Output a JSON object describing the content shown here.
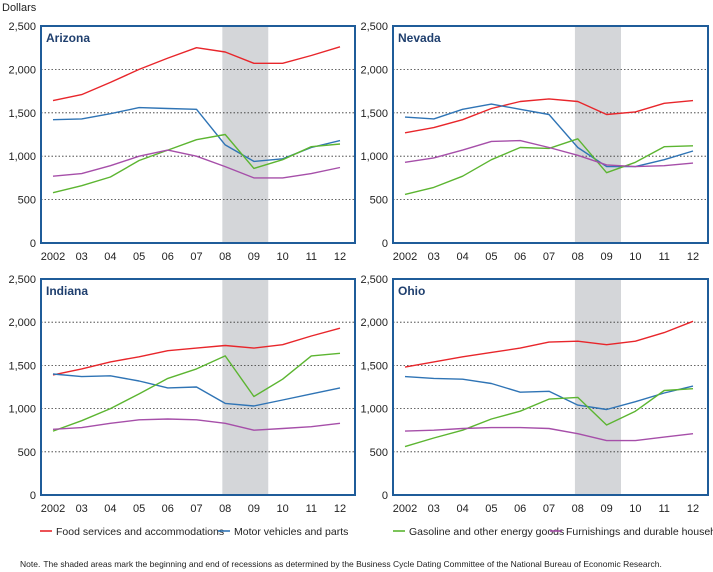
{
  "y_unit_label": "Dollars",
  "note_prefix": "Note.",
  "note_text": "The shaded areas mark the beginning and end of recessions as determined by the Business Cycle Dating Committee of the National Bureau of Economic Research.",
  "colors": {
    "food": "#e8262b",
    "motor": "#2f74b5",
    "gas": "#5cb531",
    "furn": "#a64fa9",
    "frame": "#1f5c99",
    "recession": "#d4d6d9"
  },
  "chart_data": [
    {
      "type": "line",
      "title": "Arizona",
      "x": [
        "2002",
        "03",
        "04",
        "05",
        "06",
        "07",
        "08",
        "09",
        "10",
        "11",
        "12"
      ],
      "ylim": [
        0,
        2500
      ],
      "yticks": [
        "0",
        "500",
        "1,000",
        "1,500",
        "2,000",
        "2,500"
      ],
      "recession": [
        2007.9,
        2009.5
      ],
      "series": [
        {
          "name": "Food services and accommodations",
          "color": "#e8262b",
          "values": [
            1640,
            1710,
            1850,
            2000,
            2130,
            2250,
            2200,
            2070,
            2070,
            2160,
            2260
          ]
        },
        {
          "name": "Motor vehicles and parts",
          "color": "#2f74b5",
          "values": [
            1420,
            1430,
            1490,
            1560,
            1550,
            1540,
            1130,
            940,
            970,
            1100,
            1180
          ]
        },
        {
          "name": "Gasoline and other energy goods",
          "color": "#5cb531",
          "values": [
            580,
            660,
            760,
            950,
            1070,
            1190,
            1250,
            860,
            960,
            1110,
            1140
          ]
        },
        {
          "name": "Furnishings and durable household equipment",
          "color": "#a64fa9",
          "values": [
            770,
            800,
            890,
            1000,
            1070,
            1000,
            880,
            750,
            750,
            800,
            870
          ]
        }
      ]
    },
    {
      "type": "line",
      "title": "Nevada",
      "x": [
        "2002",
        "03",
        "04",
        "05",
        "06",
        "07",
        "08",
        "09",
        "10",
        "11",
        "12"
      ],
      "ylim": [
        0,
        2500
      ],
      "yticks": [
        "0",
        "500",
        "1,000",
        "1,500",
        "2,000",
        "2,500"
      ],
      "recession": [
        2007.9,
        2009.5
      ],
      "series": [
        {
          "name": "Food services and accommodations",
          "color": "#e8262b",
          "values": [
            1270,
            1330,
            1420,
            1550,
            1630,
            1660,
            1630,
            1480,
            1510,
            1610,
            1640
          ]
        },
        {
          "name": "Motor vehicles and parts",
          "color": "#2f74b5",
          "values": [
            1450,
            1430,
            1540,
            1600,
            1540,
            1480,
            1100,
            880,
            880,
            960,
            1060
          ]
        },
        {
          "name": "Gasoline and other energy goods",
          "color": "#5cb531",
          "values": [
            560,
            640,
            770,
            960,
            1100,
            1090,
            1200,
            810,
            930,
            1110,
            1120
          ]
        },
        {
          "name": "Furnishings and durable household equipment",
          "color": "#a64fa9",
          "values": [
            930,
            980,
            1070,
            1170,
            1180,
            1100,
            1010,
            900,
            880,
            890,
            920
          ]
        }
      ]
    },
    {
      "type": "line",
      "title": "Indiana",
      "x": [
        "2002",
        "03",
        "04",
        "05",
        "06",
        "07",
        "08",
        "09",
        "10",
        "11",
        "12"
      ],
      "ylim": [
        0,
        2500
      ],
      "yticks": [
        "0",
        "500",
        "1,000",
        "1,500",
        "2,000",
        "2,500"
      ],
      "recession": [
        2007.9,
        2009.5
      ],
      "series": [
        {
          "name": "Food services and accommodations",
          "color": "#e8262b",
          "values": [
            1390,
            1460,
            1540,
            1600,
            1670,
            1700,
            1730,
            1700,
            1740,
            1840,
            1930
          ]
        },
        {
          "name": "Motor vehicles and parts",
          "color": "#2f74b5",
          "values": [
            1400,
            1370,
            1380,
            1320,
            1240,
            1250,
            1060,
            1030,
            1100,
            1170,
            1240
          ]
        },
        {
          "name": "Gasoline and other energy goods",
          "color": "#5cb531",
          "values": [
            740,
            860,
            1000,
            1170,
            1350,
            1460,
            1610,
            1140,
            1340,
            1610,
            1640
          ]
        },
        {
          "name": "Furnishings and durable household equipment",
          "color": "#a64fa9",
          "values": [
            760,
            780,
            830,
            870,
            880,
            870,
            830,
            750,
            770,
            790,
            830
          ]
        }
      ]
    },
    {
      "type": "line",
      "title": "Ohio",
      "x": [
        "2002",
        "03",
        "04",
        "05",
        "06",
        "07",
        "08",
        "09",
        "10",
        "11",
        "12"
      ],
      "ylim": [
        0,
        2500
      ],
      "yticks": [
        "0",
        "500",
        "1,000",
        "1,500",
        "2,000",
        "2,500"
      ],
      "recession": [
        2007.9,
        2009.5
      ],
      "series": [
        {
          "name": "Food services and accommodations",
          "color": "#e8262b",
          "values": [
            1480,
            1540,
            1600,
            1650,
            1700,
            1770,
            1780,
            1740,
            1780,
            1880,
            2010
          ]
        },
        {
          "name": "Motor vehicles and parts",
          "color": "#2f74b5",
          "values": [
            1370,
            1350,
            1340,
            1290,
            1190,
            1200,
            1040,
            990,
            1080,
            1180,
            1260
          ]
        },
        {
          "name": "Gasoline and other energy goods",
          "color": "#5cb531",
          "values": [
            560,
            660,
            750,
            880,
            970,
            1110,
            1130,
            810,
            970,
            1210,
            1230
          ]
        },
        {
          "name": "Furnishings and durable household equipment",
          "color": "#a64fa9",
          "values": [
            740,
            750,
            770,
            780,
            780,
            770,
            710,
            630,
            630,
            670,
            710
          ]
        }
      ]
    }
  ]
}
